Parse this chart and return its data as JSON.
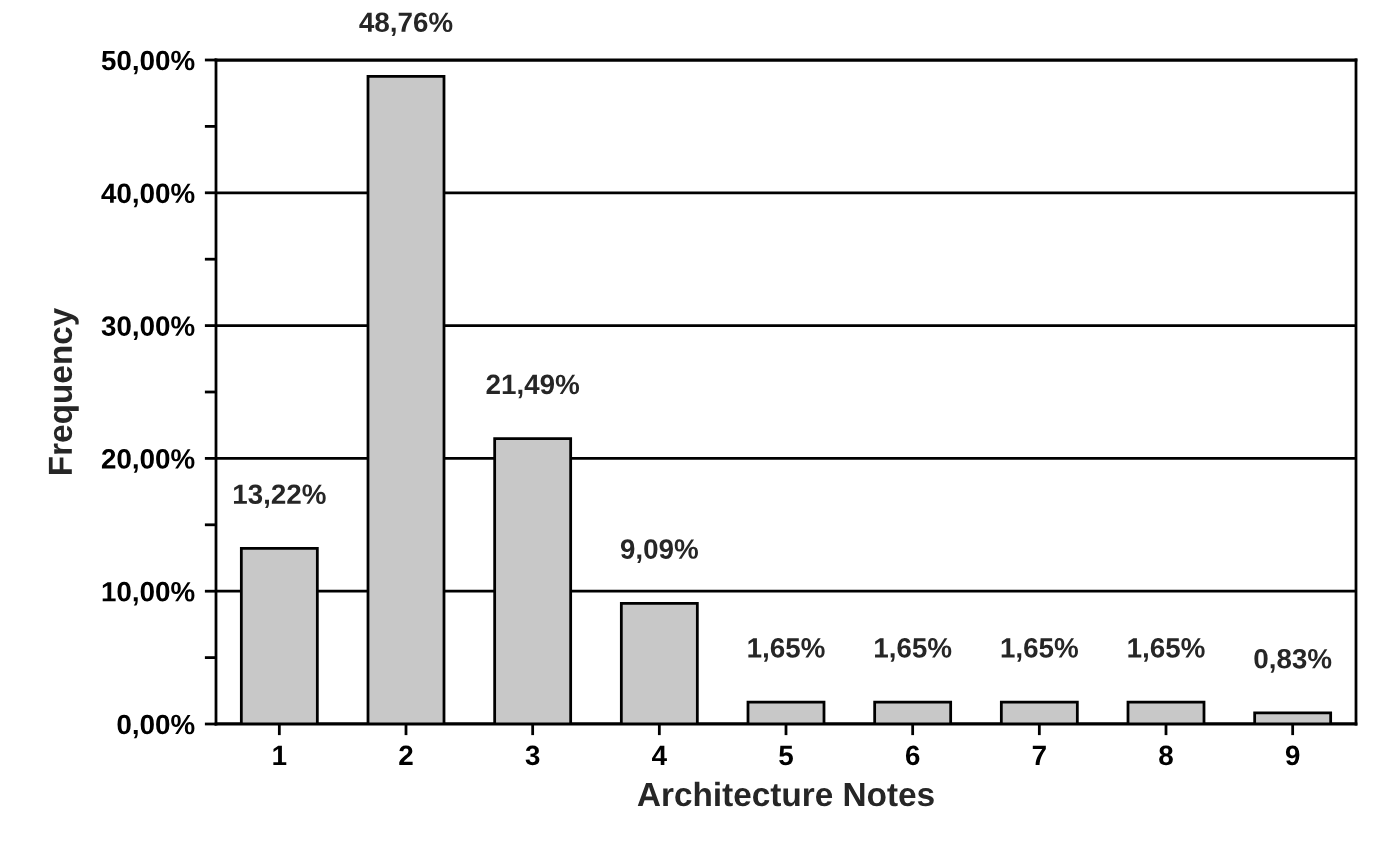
{
  "chart_data": {
    "type": "bar",
    "xlabel": "Architecture Notes",
    "ylabel": "Frequency",
    "categories": [
      "1",
      "2",
      "3",
      "4",
      "5",
      "6",
      "7",
      "8",
      "9"
    ],
    "values": [
      13.22,
      48.76,
      21.49,
      9.09,
      1.65,
      1.65,
      1.65,
      1.65,
      0.83
    ],
    "value_labels": [
      "13,22%",
      "48,76%",
      "21,49%",
      "9,09%",
      "1,65%",
      "1,65%",
      "1,65%",
      "1,65%",
      "0,83%"
    ],
    "color": "#c8c8c8",
    "ylim": [
      0,
      50
    ],
    "yticks": [
      {
        "value": 0,
        "label": "0,00%"
      },
      {
        "value": 5,
        "label": null
      },
      {
        "value": 10,
        "label": "10,00%"
      },
      {
        "value": 15,
        "label": null
      },
      {
        "value": 20,
        "label": "20,00%"
      },
      {
        "value": 25,
        "label": null
      },
      {
        "value": 30,
        "label": "30,00%"
      },
      {
        "value": 35,
        "label": null
      },
      {
        "value": 40,
        "label": "40,00%"
      },
      {
        "value": 45,
        "label": null
      },
      {
        "value": 50,
        "label": "50,00%"
      }
    ],
    "grid": "y"
  }
}
